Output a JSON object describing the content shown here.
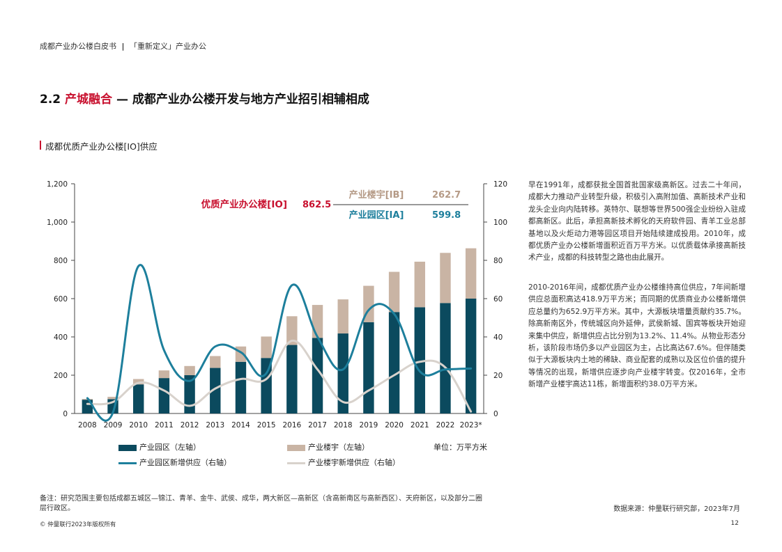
{
  "header": {
    "doc_title": "成都产业办公楼白皮书",
    "separator": "|",
    "subtitle": "「重新定义」产业办公"
  },
  "section": {
    "number": "2.2",
    "highlight": "产城融合",
    "rest": " — 成都产业办公楼开发与地方产业招引相辅相成"
  },
  "chart_title": "成都优质产业办公楼[IO]供应",
  "callout": {
    "io_label": "优质产业办公楼[IO]",
    "io_value": "862.5",
    "ib_label": "产业楼宇[IB]",
    "ib_value": "262.7",
    "ia_label": "产业园区[IA]",
    "ia_value": "599.8"
  },
  "legend": {
    "ia_bar": "产业园区（左轴）",
    "ib_bar": "产业楼宇（左轴）",
    "ia_line": "产业园区新增供应（右轴）",
    "ib_line": "产业楼宇新增供应（右轴）",
    "unit": "单位：万平方米"
  },
  "colors": {
    "ia": "#0b4a5e",
    "ib": "#c9b4a4",
    "ia_line": "#1d7f9c",
    "ib_line": "#d8d2cc",
    "accent_red": "#c8102e"
  },
  "chart_data": {
    "type": "bar",
    "categories": [
      "2008",
      "2009",
      "2010",
      "2011",
      "2012",
      "2013",
      "2014",
      "2015",
      "2016",
      "2017",
      "2018",
      "2019",
      "2020",
      "2021",
      "2022",
      "2023*"
    ],
    "y_left_ticks": [
      "0",
      "200",
      "400",
      "600",
      "800",
      "1,000",
      "1,200"
    ],
    "y_right_ticks": [
      "0",
      "20",
      "40",
      "60",
      "80",
      "100",
      "120"
    ],
    "ylim_left": [
      0,
      1200
    ],
    "ylim_right": [
      0,
      120
    ],
    "stacked": true,
    "series": [
      {
        "name": "产业园区（左轴）",
        "axis": "left",
        "kind": "bar",
        "values": [
          72,
          75,
          152,
          185,
          200,
          238,
          270,
          290,
          358,
          395,
          418,
          477,
          530,
          555,
          577,
          600
        ]
      },
      {
        "name": "产业楼宇（左轴）",
        "axis": "left",
        "kind": "bar",
        "values": [
          4,
          12,
          28,
          40,
          48,
          62,
          80,
          112,
          150,
          172,
          178,
          190,
          210,
          238,
          262,
          263
        ]
      },
      {
        "name": "产业园区新增供应（右轴）",
        "axis": "right",
        "kind": "line",
        "values": [
          8,
          0.5,
          77,
          33,
          17,
          35,
          32,
          21,
          67,
          40,
          23,
          54,
          52,
          22,
          23,
          23.5
        ]
      },
      {
        "name": "产业楼宇新增供应（右轴）",
        "axis": "right",
        "kind": "line",
        "values": [
          5,
          6,
          16,
          12,
          4,
          13,
          18,
          18,
          38,
          23,
          6,
          12,
          20,
          27,
          24,
          1
        ]
      }
    ]
  },
  "body_paragraphs": [
    "早在1991年，成都获批全国首批国家级高新区。过去二十年间，成都大力推动产业转型升级，积极引入高附加值、高新技术产业和龙头企业向内陆转移。英特尔、联想等世界500强企业纷纷入驻成都高新区。此后，承担高新技术孵化的天府软件园、青羊工业总部基地以及火炬动力港等园区项目开始陆续建成投用。2010年，成都优质产业办公楼新增面积近百万平方米。以优质载体承接高新技术产业，成都的科技转型之路也由此展开。",
    "2010-2016年间，成都优质产业办公楼维持高位供应，7年间新增供应总面积高达418.9万平方米；而同期的优质商业办公楼新增供应总量约为652.9万平方米。其中，大源板块增量贡献约35.7%。除高新南区外，传统城区向外延伸，武侯新城、国宾等板块开始迎来集中供应，新增供应占比分别为13.2%、11.4%。从物业形态分析，该阶段市场仍多以产业园区为主，占比高达67.6%。但伴随类似于大源板块内土地的稀缺、商业配套的成熟以及区位价值的提升等情况的出现，新增供应逐步向产业楼宇转变。仅2016年，全市新增产业楼宇高达11栋，新增面积约38.0万平方米。"
  ],
  "footnote": "备注：研究范围主要包括成都五城区—锦江、青羊、金牛、武侯、成华，两大新区—高新区（含高新南区与高新西区）、天府新区，以及部分二圈层行政区。",
  "source": "数据来源：仲量联行研究部，2023年7月",
  "copyright": "© 仲量联行2023年版权所有",
  "page_number": "12"
}
